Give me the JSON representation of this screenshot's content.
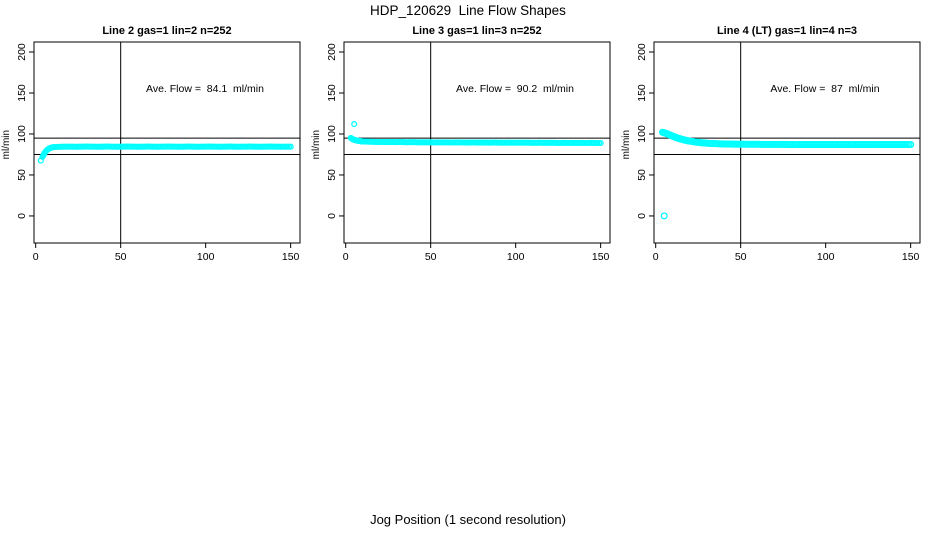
{
  "title": "HDP_120629  Line Flow Shapes",
  "xlabel": "Jog Position (1 second resolution)",
  "colors": {
    "points": "#00ffff",
    "axis": "#000000",
    "background": "#ffffff",
    "text": "#000000"
  },
  "chart_data": [
    {
      "type": "scatter",
      "title": "Line 2 gas=1 lin=2 n=252",
      "annotation": "Ave. Flow =  84.1  ml/min",
      "ave_flow": 84.1,
      "ylabel": "ml/min",
      "xticks": [
        0,
        50,
        100,
        150
      ],
      "yticks": [
        0,
        50,
        100,
        150,
        200
      ],
      "xlim": [
        -1,
        155.5
      ],
      "ylim": [
        -33,
        212.2
      ],
      "hlines": [
        75,
        95
      ],
      "vlines": [
        50
      ],
      "grid": false,
      "point_radius": 2.4,
      "outliers": [
        [
          3,
          67.5
        ]
      ],
      "points": [
        [
          4,
          72
        ],
        [
          5,
          76
        ],
        [
          6,
          79
        ],
        [
          7,
          81
        ],
        [
          8,
          82.3
        ],
        [
          9,
          83.2
        ],
        [
          10,
          83.8
        ],
        [
          12,
          84.2
        ],
        [
          15,
          84.4
        ],
        [
          18,
          84.5
        ],
        [
          21,
          84.5
        ],
        [
          24,
          84.4
        ],
        [
          27,
          84.5
        ],
        [
          30,
          84.6
        ],
        [
          33,
          84.5
        ],
        [
          36,
          84.4
        ],
        [
          39,
          84.5
        ],
        [
          42,
          84.6
        ],
        [
          45,
          84.5
        ],
        [
          48,
          84.4
        ],
        [
          51,
          84.5
        ],
        [
          54,
          84.6
        ],
        [
          57,
          84.5
        ],
        [
          60,
          84.4
        ],
        [
          63,
          84.5
        ],
        [
          66,
          84.6
        ],
        [
          69,
          84.5
        ],
        [
          72,
          84.4
        ],
        [
          75,
          84.5
        ],
        [
          78,
          84.6
        ],
        [
          81,
          84.5
        ],
        [
          84,
          84.4
        ],
        [
          87,
          84.5
        ],
        [
          90,
          84.6
        ],
        [
          93,
          84.5
        ],
        [
          96,
          84.4
        ],
        [
          99,
          84.5
        ],
        [
          102,
          84.6
        ],
        [
          105,
          84.5
        ],
        [
          108,
          84.4
        ],
        [
          111,
          84.5
        ],
        [
          114,
          84.6
        ],
        [
          117,
          84.5
        ],
        [
          120,
          84.4
        ],
        [
          123,
          84.5
        ],
        [
          126,
          84.6
        ],
        [
          129,
          84.5
        ],
        [
          132,
          84.4
        ],
        [
          135,
          84.5
        ],
        [
          138,
          84.6
        ],
        [
          141,
          84.5
        ],
        [
          144,
          84.4
        ],
        [
          147,
          84.5
        ],
        [
          150,
          84.5
        ]
      ]
    },
    {
      "type": "scatter",
      "title": "Line 3 gas=1 lin=3 n=252",
      "annotation": "Ave. Flow =  90.2  ml/min",
      "ave_flow": 90.2,
      "ylabel": "ml/min",
      "xticks": [
        0,
        50,
        100,
        150
      ],
      "yticks": [
        0,
        50,
        100,
        150,
        200
      ],
      "xlim": [
        -1,
        155.5
      ],
      "ylim": [
        -33,
        212.2
      ],
      "hlines": [
        75,
        95
      ],
      "vlines": [
        50
      ],
      "grid": false,
      "point_radius": 2.4,
      "outliers": [
        [
          5,
          112
        ]
      ],
      "points": [
        [
          3,
          95.2
        ],
        [
          4,
          93.8
        ],
        [
          5,
          92.9
        ],
        [
          6,
          92.3
        ],
        [
          7,
          91.8
        ],
        [
          8,
          91.4
        ],
        [
          9,
          91.1
        ],
        [
          10,
          90.9
        ],
        [
          12,
          90.7
        ],
        [
          15,
          90.5
        ],
        [
          18,
          90.3
        ],
        [
          21,
          90.2
        ],
        [
          24,
          90.1
        ],
        [
          27,
          90.1
        ],
        [
          30,
          90
        ],
        [
          33,
          90.1
        ],
        [
          36,
          89.9
        ],
        [
          39,
          90
        ],
        [
          42,
          89.9
        ],
        [
          45,
          89.8
        ],
        [
          48,
          89.9
        ],
        [
          51,
          89.8
        ],
        [
          54,
          89.7
        ],
        [
          57,
          89.8
        ],
        [
          60,
          89.7
        ],
        [
          63,
          89.6
        ],
        [
          66,
          89.7
        ],
        [
          69,
          89.6
        ],
        [
          72,
          89.5
        ],
        [
          75,
          89.6
        ],
        [
          78,
          89.5
        ],
        [
          81,
          89.5
        ],
        [
          84,
          89.4
        ],
        [
          87,
          89.5
        ],
        [
          90,
          89.4
        ],
        [
          93,
          89.4
        ],
        [
          96,
          89.3
        ],
        [
          99,
          89.4
        ],
        [
          102,
          89.3
        ],
        [
          105,
          89.3
        ],
        [
          108,
          89.3
        ],
        [
          111,
          89.2
        ],
        [
          114,
          89.3
        ],
        [
          117,
          89.2
        ],
        [
          120,
          89.2
        ],
        [
          123,
          89.2
        ],
        [
          126,
          89.1
        ],
        [
          129,
          89.2
        ],
        [
          132,
          89.1
        ],
        [
          135,
          89.1
        ],
        [
          138,
          89.1
        ],
        [
          141,
          89
        ],
        [
          144,
          89.1
        ],
        [
          147,
          89
        ],
        [
          150,
          89
        ]
      ]
    },
    {
      "type": "scatter",
      "title": "Line 4 (LT) gas=1 lin=4 n=3",
      "annotation": "Ave. Flow =  87  ml/min",
      "ave_flow": 87,
      "ylabel": "ml/min",
      "xticks": [
        0,
        50,
        100,
        150
      ],
      "yticks": [
        0,
        50,
        100,
        150,
        200
      ],
      "xlim": [
        -1,
        155.5
      ],
      "ylim": [
        -33,
        212.2
      ],
      "hlines": [
        75,
        95
      ],
      "vlines": [
        50
      ],
      "grid": false,
      "point_radius": 2.9,
      "outliers": [
        [
          5,
          0
        ]
      ],
      "points": [
        [
          4,
          102
        ],
        [
          5,
          101.4
        ],
        [
          6,
          100.8
        ],
        [
          7,
          100
        ],
        [
          8,
          99.1
        ],
        [
          9,
          98.2
        ],
        [
          10,
          97.3
        ],
        [
          11,
          96.5
        ],
        [
          12,
          95.7
        ],
        [
          13,
          95
        ],
        [
          14,
          94.3
        ],
        [
          15,
          93.7
        ],
        [
          16,
          93.1
        ],
        [
          17,
          92.6
        ],
        [
          18,
          92.1
        ],
        [
          19,
          91.7
        ],
        [
          20,
          91.3
        ],
        [
          22,
          90.6
        ],
        [
          24,
          90
        ],
        [
          26,
          89.5
        ],
        [
          28,
          89.1
        ],
        [
          30,
          88.8
        ],
        [
          33,
          88.4
        ],
        [
          36,
          88.1
        ],
        [
          39,
          87.9
        ],
        [
          42,
          87.7
        ],
        [
          45,
          87.6
        ],
        [
          48,
          87.5
        ],
        [
          51,
          87.5
        ],
        [
          54,
          87.4
        ],
        [
          57,
          87.4
        ],
        [
          60,
          87.4
        ],
        [
          63,
          87.3
        ],
        [
          66,
          87.3
        ],
        [
          69,
          87.3
        ],
        [
          72,
          87.3
        ],
        [
          75,
          87.3
        ],
        [
          78,
          87.2
        ],
        [
          81,
          87.2
        ],
        [
          84,
          87.2
        ],
        [
          87,
          87.2
        ],
        [
          90,
          87.2
        ],
        [
          93,
          87.2
        ],
        [
          96,
          87.2
        ],
        [
          99,
          87.1
        ],
        [
          102,
          87.1
        ],
        [
          105,
          87.1
        ],
        [
          108,
          87.1
        ],
        [
          111,
          87.1
        ],
        [
          114,
          87.1
        ],
        [
          117,
          87.1
        ],
        [
          120,
          87.1
        ],
        [
          123,
          87.1
        ],
        [
          126,
          87.1
        ],
        [
          129,
          87.1
        ],
        [
          132,
          87.1
        ],
        [
          135,
          87.1
        ],
        [
          138,
          87.1
        ],
        [
          141,
          87.1
        ],
        [
          144,
          87.1
        ],
        [
          147,
          87.1
        ],
        [
          150,
          87.1
        ]
      ]
    }
  ]
}
